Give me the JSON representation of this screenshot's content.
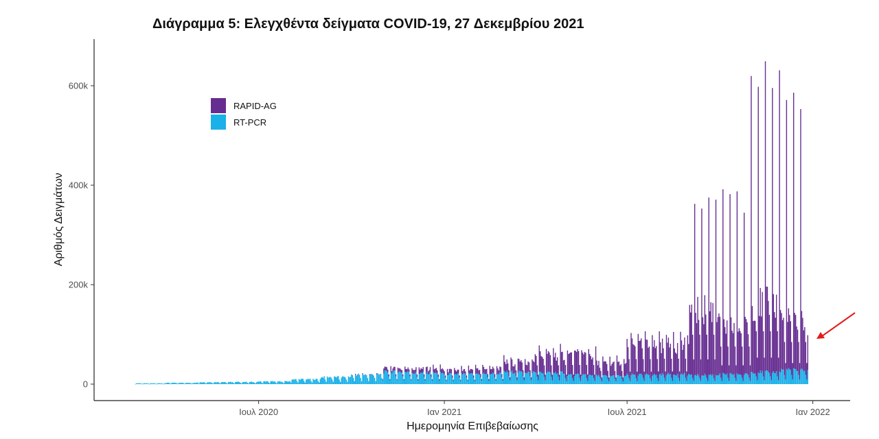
{
  "chart_data": {
    "type": "bar",
    "stacked": true,
    "title": "Διάγραμμα 5: Ελεγχθέντα δείγματα COVID-19, 27 Δεκεμβρίου 2021",
    "xlabel": "Ημερομηνία Επιβεβαίωσης",
    "ylabel": "Αριθμός Δειγμάτων",
    "ylim": [
      0,
      700000
    ],
    "xlim": [
      "2020-01-20",
      "2022-02-07"
    ],
    "y_ticks": [
      {
        "value": 0,
        "label": "0"
      },
      {
        "value": 200000,
        "label": "200k"
      },
      {
        "value": 400000,
        "label": "400k"
      },
      {
        "value": 600000,
        "label": "600k"
      }
    ],
    "x_ticks": [
      {
        "value": "2020-07-01",
        "label": "Ιουλ 2020"
      },
      {
        "value": "2021-01-01",
        "label": "Ιαν 2021"
      },
      {
        "value": "2021-07-01",
        "label": "Ιουλ 2021"
      },
      {
        "value": "2022-01-01",
        "label": "Ιαν 2022"
      }
    ],
    "grid": false,
    "legend": {
      "position": "top-left",
      "entries": [
        {
          "name": "RAPID-AG",
          "color": "#662d91"
        },
        {
          "name": "RT-PCR",
          "color": "#1ab0e8"
        }
      ]
    },
    "daily_range": [
      "2020-03-01",
      "2021-12-27"
    ],
    "series": [
      {
        "name": "RT-PCR",
        "color": "#1ab0e8",
        "monthly": [
          {
            "month": "2020-03",
            "mean": 1500
          },
          {
            "month": "2020-04",
            "mean": 2500
          },
          {
            "month": "2020-05",
            "mean": 3500
          },
          {
            "month": "2020-06",
            "mean": 4000
          },
          {
            "month": "2020-07",
            "mean": 5000
          },
          {
            "month": "2020-08",
            "mean": 9000
          },
          {
            "month": "2020-09",
            "mean": 13000
          },
          {
            "month": "2020-10",
            "mean": 17000
          },
          {
            "month": "2020-11",
            "mean": 22000
          },
          {
            "month": "2020-12",
            "mean": 20000
          },
          {
            "month": "2021-01",
            "mean": 18000
          },
          {
            "month": "2021-02",
            "mean": 19000
          },
          {
            "month": "2021-03",
            "mean": 22000
          },
          {
            "month": "2021-04",
            "mean": 21000
          },
          {
            "month": "2021-05",
            "mean": 17000
          },
          {
            "month": "2021-06",
            "mean": 15000
          },
          {
            "month": "2021-07",
            "mean": 17000
          },
          {
            "month": "2021-08",
            "mean": 18000
          },
          {
            "month": "2021-09",
            "mean": 17000
          },
          {
            "month": "2021-10",
            "mean": 18000
          },
          {
            "month": "2021-11",
            "mean": 22000
          },
          {
            "month": "2021-12",
            "mean": 26000
          }
        ]
      },
      {
        "name": "RAPID-AG",
        "color": "#662d91",
        "monthly": [
          {
            "month": "2020-03",
            "mean": 0,
            "peak": 0
          },
          {
            "month": "2020-04",
            "mean": 0,
            "peak": 0
          },
          {
            "month": "2020-05",
            "mean": 0,
            "peak": 0
          },
          {
            "month": "2020-06",
            "mean": 0,
            "peak": 0
          },
          {
            "month": "2020-07",
            "mean": 0,
            "peak": 0
          },
          {
            "month": "2020-08",
            "mean": 0,
            "peak": 0
          },
          {
            "month": "2020-09",
            "mean": 0,
            "peak": 0
          },
          {
            "month": "2020-10",
            "mean": 500,
            "peak": 2000
          },
          {
            "month": "2020-11",
            "mean": 6000,
            "peak": 12000
          },
          {
            "month": "2020-12",
            "mean": 8000,
            "peak": 15000
          },
          {
            "month": "2021-01",
            "mean": 7000,
            "peak": 15000
          },
          {
            "month": "2021-02",
            "mean": 10000,
            "peak": 20000
          },
          {
            "month": "2021-03",
            "mean": 18000,
            "peak": 32000
          },
          {
            "month": "2021-04",
            "mean": 33000,
            "peak": 55000
          },
          {
            "month": "2021-05",
            "mean": 38000,
            "peak": 60000
          },
          {
            "month": "2021-06",
            "mean": 23000,
            "peak": 40000
          },
          {
            "month": "2021-07",
            "mean": 55000,
            "peak": 95000
          },
          {
            "month": "2021-08",
            "mean": 55000,
            "peak": 95000
          },
          {
            "month": "2021-09",
            "mean": 125000,
            "peak": 385000
          },
          {
            "month": "2021-10",
            "mean": 90000,
            "peak": 370000
          },
          {
            "month": "2021-11",
            "mean": 130000,
            "peak": 640000
          },
          {
            "month": "2021-12",
            "mean": 95000,
            "peak": 560000
          }
        ]
      }
    ],
    "annotations": [
      {
        "type": "arrow",
        "color": "#e31a1c",
        "target_date": "2021-12-27"
      }
    ]
  }
}
